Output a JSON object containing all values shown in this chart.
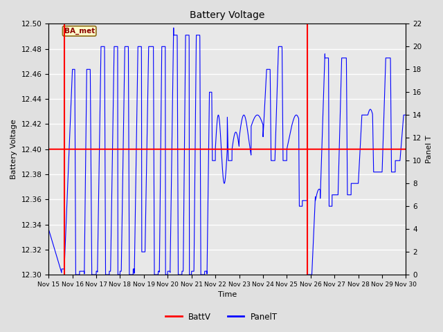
{
  "title": "Battery Voltage",
  "xlabel": "Time",
  "ylabel_left": "Battery Voltage",
  "ylabel_right": "Panel T",
  "ylim_left": [
    12.3,
    12.5
  ],
  "ylim_right": [
    0,
    22
  ],
  "yticks_left": [
    12.3,
    12.32,
    12.34,
    12.36,
    12.38,
    12.4,
    12.42,
    12.44,
    12.46,
    12.48,
    12.5
  ],
  "yticks_right": [
    0,
    2,
    4,
    6,
    8,
    10,
    12,
    14,
    16,
    18,
    20,
    22
  ],
  "background_color": "#e0e0e0",
  "plot_bg_color": "#e8e8e8",
  "grid_color": "#ffffff",
  "batt_v_color": "#ff0000",
  "panel_t_color": "#0000ff",
  "batt_v_value": 12.4,
  "annotation_text": "BA_met",
  "red_line_x1": 15.65,
  "red_line_x2": 25.85,
  "x_start": 15.0,
  "x_end": 30.0,
  "xtick_labels": [
    "Nov 15",
    "Nov 16",
    "Nov 17",
    "Nov 18",
    "Nov 19",
    "Nov 20",
    "Nov 21",
    "Nov 22",
    "Nov 23",
    "Nov 24",
    "Nov 25",
    "Nov 26",
    "Nov 27",
    "Nov 28",
    "Nov 29",
    "Nov 30"
  ],
  "xtick_positions": [
    15,
    16,
    17,
    18,
    19,
    20,
    21,
    22,
    23,
    24,
    25,
    26,
    27,
    28,
    29,
    30
  ]
}
